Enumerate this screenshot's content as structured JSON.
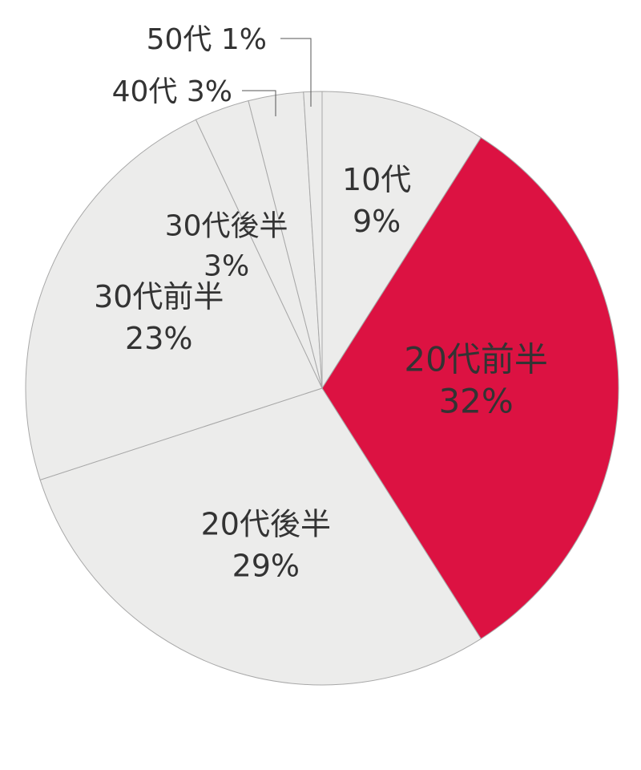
{
  "chart_data": {
    "type": "pie",
    "title": "",
    "start": "12 o'clock",
    "direction": "clockwise",
    "slices": [
      {
        "label": "10代",
        "value": 9,
        "value_label": "9%",
        "color": "#ececeb",
        "text_color": "#333333",
        "label_placement": "inside"
      },
      {
        "label": "20代前半",
        "value": 32,
        "value_label": "32%",
        "color": "#dc1242",
        "text_color": "#ffffff",
        "label_placement": "inside"
      },
      {
        "label": "20代後半",
        "value": 29,
        "value_label": "29%",
        "color": "#ececeb",
        "text_color": "#333333",
        "label_placement": "inside"
      },
      {
        "label": "30代前半",
        "value": 23,
        "value_label": "23%",
        "color": "#ececeb",
        "text_color": "#333333",
        "label_placement": "inside"
      },
      {
        "label": "30代後半",
        "value": 3,
        "value_label": "3%",
        "color": "#ececeb",
        "text_color": "#333333",
        "label_placement": "inside"
      },
      {
        "label": "40代",
        "value": 3,
        "value_label": "3%",
        "color": "#ececeb",
        "text_color": "#333333",
        "label_placement": "outside"
      },
      {
        "label": "50代",
        "value": 1,
        "value_label": "1%",
        "color": "#ececeb",
        "text_color": "#333333",
        "label_placement": "outside"
      }
    ],
    "border_color": "#a8a8a8",
    "legend": "none"
  }
}
